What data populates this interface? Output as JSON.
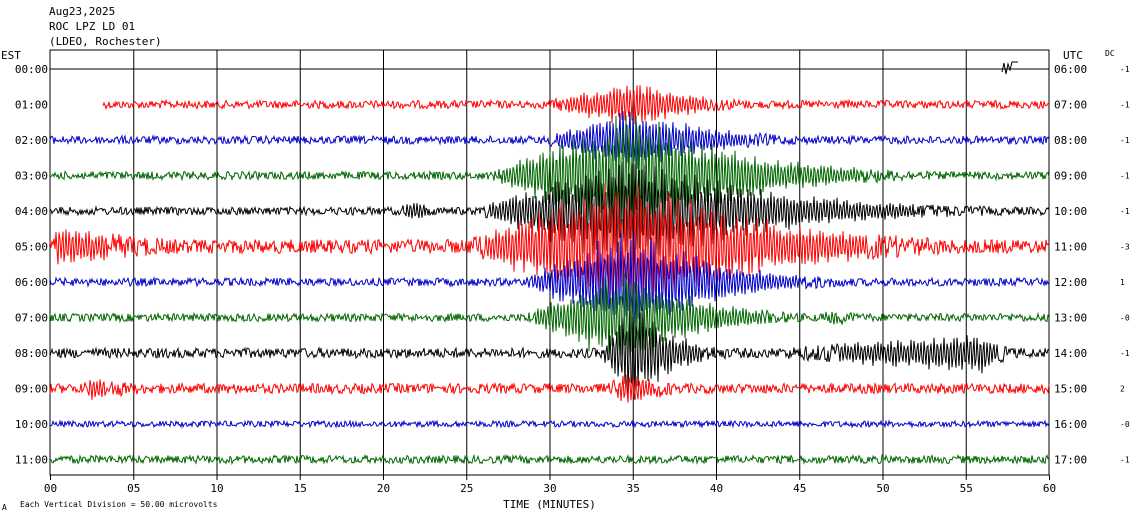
{
  "header": {
    "date": "Aug23,2025",
    "station": "ROC LPZ LD 01",
    "network": "(LDEO, Rochester)"
  },
  "left_zone_label": "EST",
  "right_zone_label": "UTC",
  "dc_label": "DC",
  "footer": {
    "scale_note": "Each Vertical Division =   50.00 microvolts",
    "corner_mark": "A"
  },
  "colors": {
    "red": "#ff0000",
    "blue": "#0000cc",
    "green": "#006600",
    "black": "#000000",
    "grid": "#000000"
  },
  "chart_data": {
    "type": "line",
    "title": "",
    "xlabel": "TIME (MINUTES)",
    "ylabel": "",
    "xlim": [
      0,
      60
    ],
    "x_ticks": [
      "00",
      "05",
      "10",
      "15",
      "20",
      "25",
      "30",
      "35",
      "40",
      "45",
      "50",
      "55",
      "60"
    ],
    "grid": true,
    "rows": [
      {
        "left": "00:00",
        "right": "06:00",
        "dc": "-1",
        "color": "black",
        "start_min": 0,
        "base_amp": 0,
        "events": []
      },
      {
        "left": "01:00",
        "right": "07:00",
        "dc": "-1",
        "color": "red",
        "start_min": 3.2,
        "base_amp": 4,
        "events": [
          {
            "start": 29,
            "peak": 35,
            "end": 47,
            "amp": 25
          }
        ]
      },
      {
        "left": "02:00",
        "right": "08:00",
        "dc": "-1",
        "color": "blue",
        "start_min": 0,
        "base_amp": 4,
        "events": [
          {
            "start": 29,
            "peak": 35,
            "end": 49,
            "amp": 35
          }
        ]
      },
      {
        "left": "03:00",
        "right": "09:00",
        "dc": "-1",
        "color": "green",
        "start_min": 0,
        "base_amp": 4,
        "events": [
          {
            "start": 26,
            "peak": 35,
            "end": 54,
            "amp": 70
          }
        ]
      },
      {
        "left": "04:00",
        "right": "10:00",
        "dc": "-1",
        "color": "black",
        "start_min": 0,
        "base_amp": 4,
        "events": [
          {
            "start": 20.5,
            "peak": 22,
            "end": 25,
            "amp": 12
          },
          {
            "start": 25,
            "peak": 35,
            "end": 60,
            "amp": 60
          }
        ]
      },
      {
        "left": "05:00",
        "right": "11:00",
        "dc": "-3",
        "color": "red",
        "start_min": 0,
        "base_amp": 7,
        "events": [
          {
            "start": 0,
            "peak": 0.5,
            "end": 20,
            "amp": 22
          },
          {
            "start": 24,
            "peak": 35,
            "end": 60,
            "amp": 75
          }
        ]
      },
      {
        "left": "06:00",
        "right": "12:00",
        "dc": "1",
        "color": "blue",
        "start_min": 0,
        "base_amp": 4,
        "events": [
          {
            "start": 28,
            "peak": 35,
            "end": 50,
            "amp": 60
          }
        ]
      },
      {
        "left": "07:00",
        "right": "13:00",
        "dc": "-0",
        "color": "green",
        "start_min": 0,
        "base_amp": 4,
        "events": [
          {
            "start": 28,
            "peak": 35,
            "end": 47,
            "amp": 55
          },
          {
            "start": 46,
            "peak": 47,
            "end": 52,
            "amp": 10
          }
        ]
      },
      {
        "left": "08:00",
        "right": "14:00",
        "dc": "-1",
        "color": "black",
        "start_min": 0,
        "base_amp": 5,
        "events": [
          {
            "start": 33,
            "peak": 35,
            "end": 42,
            "amp": 60
          },
          {
            "start": 40,
            "peak": 56,
            "end": 60,
            "amp": 22
          }
        ]
      },
      {
        "left": "09:00",
        "right": "15:00",
        "dc": "2",
        "color": "red",
        "start_min": 0,
        "base_amp": 5,
        "events": [
          {
            "start": 1.5,
            "peak": 2.5,
            "end": 14,
            "amp": 12
          },
          {
            "start": 33,
            "peak": 35,
            "end": 41,
            "amp": 20
          }
        ]
      },
      {
        "left": "10:00",
        "right": "16:00",
        "dc": "-0",
        "color": "blue",
        "start_min": 0,
        "base_amp": 3,
        "events": []
      },
      {
        "left": "11:00",
        "right": "17:00",
        "dc": "-1",
        "color": "green",
        "start_min": 0,
        "base_amp": 4,
        "events": []
      }
    ]
  }
}
